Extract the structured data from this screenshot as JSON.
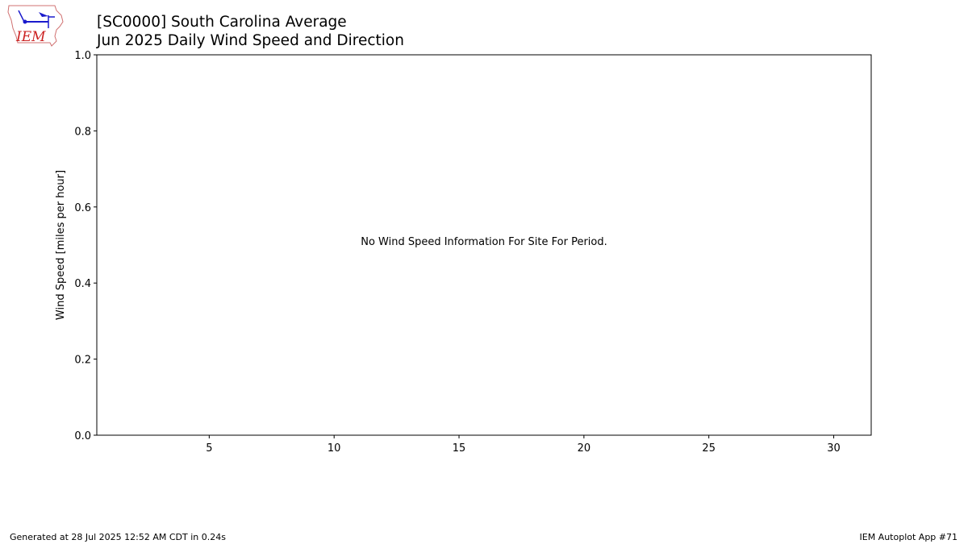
{
  "header": {
    "title_line1": "[SC0000] South Carolina Average",
    "title_line2": "Jun 2025 Daily Wind Speed and Direction",
    "logo_text": "IEM"
  },
  "footer": {
    "generated": "Generated at 28 Jul 2025 12:52 AM CDT in 0.24s",
    "app": "IEM Autoplot App #71"
  },
  "chart_data": {
    "type": "line",
    "title": "[SC0000] South Carolina Average\nJun 2025 Daily Wind Speed and Direction",
    "xlabel": "",
    "ylabel": "Wind Speed [miles per hour]",
    "xlim": [
      0.5,
      31.5
    ],
    "ylim": [
      0,
      1
    ],
    "xticks": [
      5,
      10,
      15,
      20,
      25,
      30
    ],
    "yticks": [
      0.0,
      0.2,
      0.4,
      0.6,
      0.8,
      1.0
    ],
    "ytick_labels": [
      "0.0",
      "0.2",
      "0.4",
      "0.6",
      "0.8",
      "1.0"
    ],
    "series": [],
    "annotation": "No Wind Speed Information For Site For Period.",
    "grid": false,
    "colors": {
      "logo_red": "#cc2222",
      "logo_blue": "#1a1acc"
    }
  }
}
